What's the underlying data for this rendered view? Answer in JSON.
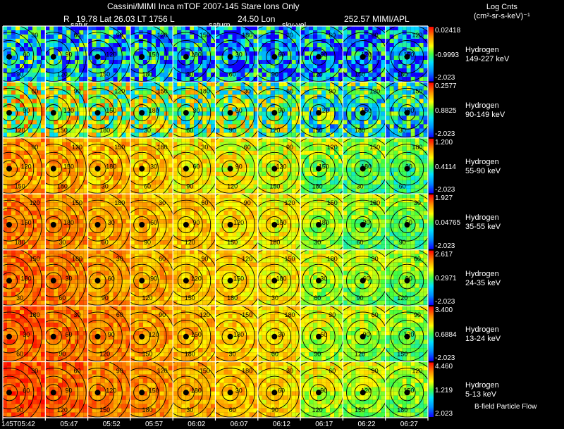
{
  "header": {
    "title": "Cassini/MIMI Inca mTOF  2007-145   Stare    Ions Only",
    "r_label": "R",
    "lat_lt": "19.78 Lat 26.03 LT 1756 L",
    "lon": "24.50 Lon",
    "source": "252.57   MIMI/APL",
    "saturn_label_1": "satur",
    "saturn_label_2": "saturn",
    "sky_label": "sky-vel"
  },
  "colorbar": {
    "title_line1": "Log Cnts",
    "title_line2": "(cm²-sr-s-keV)⁻¹"
  },
  "footer": {
    "note": "B-field Particle Flow"
  },
  "colors": {
    "background": "#000000",
    "grid": "#ffffff",
    "contour": "#000000"
  },
  "chart_data": {
    "type": "heatmap",
    "species": "Hydrogen",
    "time_labels": [
      "145T05:42",
      "05:47",
      "05:52",
      "05:57",
      "06:02",
      "06:07",
      "06:12",
      "06:17",
      "06:22",
      "06:27"
    ],
    "rows": [
      {
        "name": "Hydrogen",
        "energy": "149-227 keV",
        "cb_max": "0.02418",
        "cb_mid": "-0.9993",
        "cb_min": "-2.023"
      },
      {
        "name": "Hydrogen",
        "energy": "90-149 keV",
        "cb_max": "0.2577",
        "cb_mid": "0.8825",
        "cb_min": "-2.023"
      },
      {
        "name": "Hydrogen",
        "energy": "55-90 keV",
        "cb_max": "1.200",
        "cb_mid": "0.4114",
        "cb_min": "-2.023"
      },
      {
        "name": "Hydrogen",
        "energy": "35-55 keV",
        "cb_max": "1.927",
        "cb_mid": "0.04765",
        "cb_min": "-2.023"
      },
      {
        "name": "Hydrogen",
        "energy": "24-35 keV",
        "cb_max": "2.617",
        "cb_mid": "0.2971",
        "cb_min": "-2.023"
      },
      {
        "name": "Hydrogen",
        "energy": "13-24 keV",
        "cb_max": "3.400",
        "cb_mid": "0.6884",
        "cb_min": "-2.023"
      },
      {
        "name": "Hydrogen",
        "energy": "5-13 keV",
        "cb_max": "4.460",
        "cb_mid": "1.219",
        "cb_min": "2.023"
      }
    ],
    "contour_labels": [
      "30",
      "60",
      "90",
      "120",
      "150",
      "180"
    ]
  }
}
